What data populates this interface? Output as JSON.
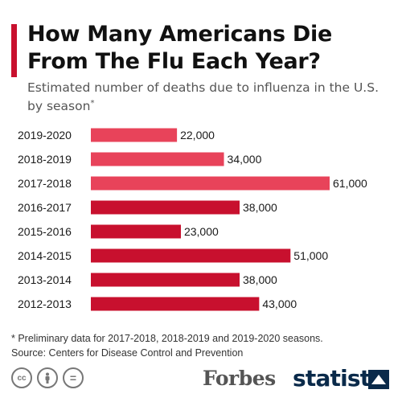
{
  "header": {
    "title": "How Many Americans Die From The Flu Each Year?",
    "subtitle": "Estimated number of deaths due to influenza in the U.S. by season",
    "subtitle_marker": "*"
  },
  "colors": {
    "accent": "#c8102e",
    "preliminary": "#e8435a",
    "final": "#c8102e"
  },
  "chart_data": {
    "type": "bar",
    "orientation": "horizontal",
    "categories": [
      "2019-2020",
      "2018-2019",
      "2017-2018",
      "2016-2017",
      "2015-2016",
      "2014-2015",
      "2013-2014",
      "2012-2013"
    ],
    "values": [
      22000,
      34000,
      61000,
      38000,
      23000,
      51000,
      38000,
      43000
    ],
    "value_labels": [
      "22,000",
      "34,000",
      "61,000",
      "38,000",
      "23,000",
      "51,000",
      "38,000",
      "43,000"
    ],
    "preliminary": [
      true,
      true,
      true,
      false,
      false,
      false,
      false,
      false
    ],
    "xlim": [
      0,
      61000
    ],
    "grid": false,
    "title": "",
    "xlabel": "",
    "ylabel": ""
  },
  "footnote": {
    "line1": "* Preliminary data for 2017-2018, 2018-2019 and 2019-2020 seasons.",
    "line2": "Source: Centers for Disease Control and Prevention"
  },
  "footer": {
    "cc_icons": [
      "cc-icon",
      "attribution-icon",
      "no-derivatives-icon"
    ],
    "cc_label": "cc",
    "nd_label": "=",
    "publisher": "Forbes",
    "brand": "statista"
  }
}
